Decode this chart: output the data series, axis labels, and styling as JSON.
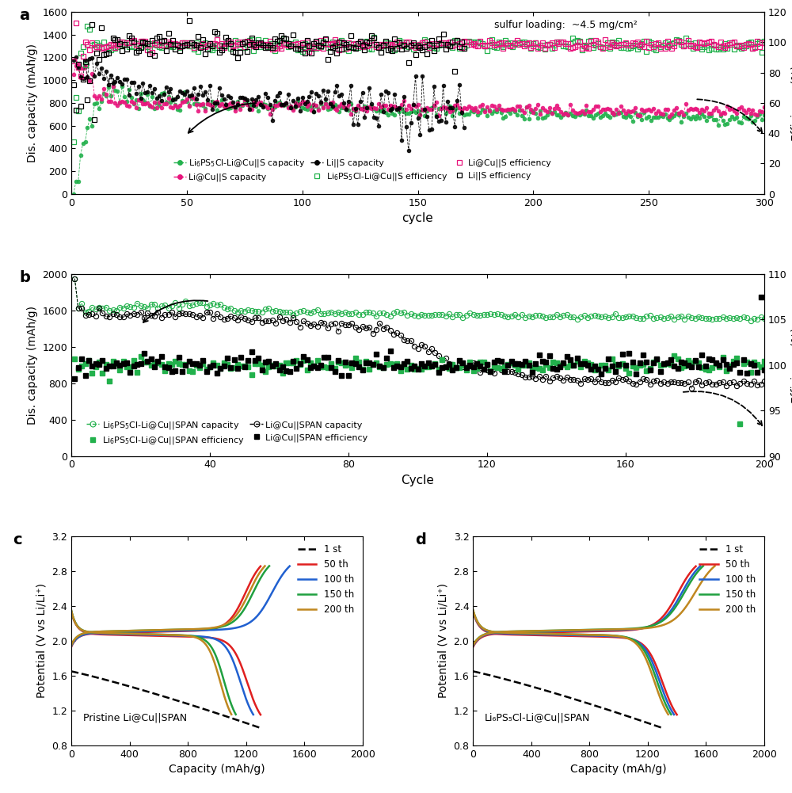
{
  "panel_a": {
    "title_label": "a",
    "xlabel": "cycle",
    "ylabel_left": "Dis. capacity (mAh/g)",
    "ylabel_right": "Efficiency (%)",
    "xlim": [
      0,
      300
    ],
    "ylim_left": [
      0,
      1600
    ],
    "ylim_right": [
      0,
      120
    ],
    "yticks_left": [
      0,
      200,
      400,
      600,
      800,
      1000,
      1200,
      1400,
      1600
    ],
    "yticks_right": [
      0,
      20,
      40,
      60,
      80,
      100,
      120
    ],
    "xticks": [
      0,
      50,
      100,
      150,
      200,
      250,
      300
    ],
    "annotation": "sulfur loading:  ~4.5 mg/cm²",
    "green": "#22b14c",
    "magenta": "#e8147c",
    "black": "#000000"
  },
  "panel_b": {
    "title_label": "b",
    "xlabel": "Cycle",
    "ylabel_left": "Dis. capacity (mAh/g)",
    "ylabel_right": "Efficiency (%)",
    "xlim": [
      0,
      200
    ],
    "ylim_left": [
      0,
      2000
    ],
    "ylim_right": [
      90,
      110
    ],
    "yticks_left": [
      0,
      400,
      800,
      1200,
      1600,
      2000
    ],
    "yticks_right": [
      90,
      95,
      100,
      105,
      110
    ],
    "xticks": [
      0,
      40,
      80,
      120,
      160,
      200
    ],
    "green": "#22b14c",
    "black": "#000000"
  },
  "panel_c": {
    "title_label": "c",
    "xlabel": "Capacity (mAh/g)",
    "ylabel": "Potential (V vs Li/Li⁺)",
    "xlim": [
      0,
      2000
    ],
    "ylim": [
      0.8,
      3.2
    ],
    "yticks": [
      0.8,
      1.2,
      1.6,
      2.0,
      2.4,
      2.8,
      3.2
    ],
    "xticks": [
      0,
      400,
      800,
      1200,
      1600,
      2000
    ],
    "annotation": "Pristine Li@Cu||SPAN"
  },
  "panel_d": {
    "title_label": "d",
    "xlabel": "Capacity (mAh/g)",
    "ylabel": "Potential (V vs Li/Li⁺)",
    "xlim": [
      0,
      2000
    ],
    "ylim": [
      0.8,
      3.2
    ],
    "yticks": [
      0.8,
      1.2,
      1.6,
      2.0,
      2.4,
      2.8,
      3.2
    ],
    "xticks": [
      0,
      400,
      800,
      1200,
      1600,
      2000
    ],
    "annotation": "Li₆PS₅Cl-Li@Cu||SPAN"
  },
  "cd_colors": [
    "#000000",
    "#e02020",
    "#2060d0",
    "#20a040",
    "#c08820"
  ],
  "cd_labels": [
    "1 st",
    "50 th",
    "100 th",
    "150 th",
    "200 th"
  ]
}
